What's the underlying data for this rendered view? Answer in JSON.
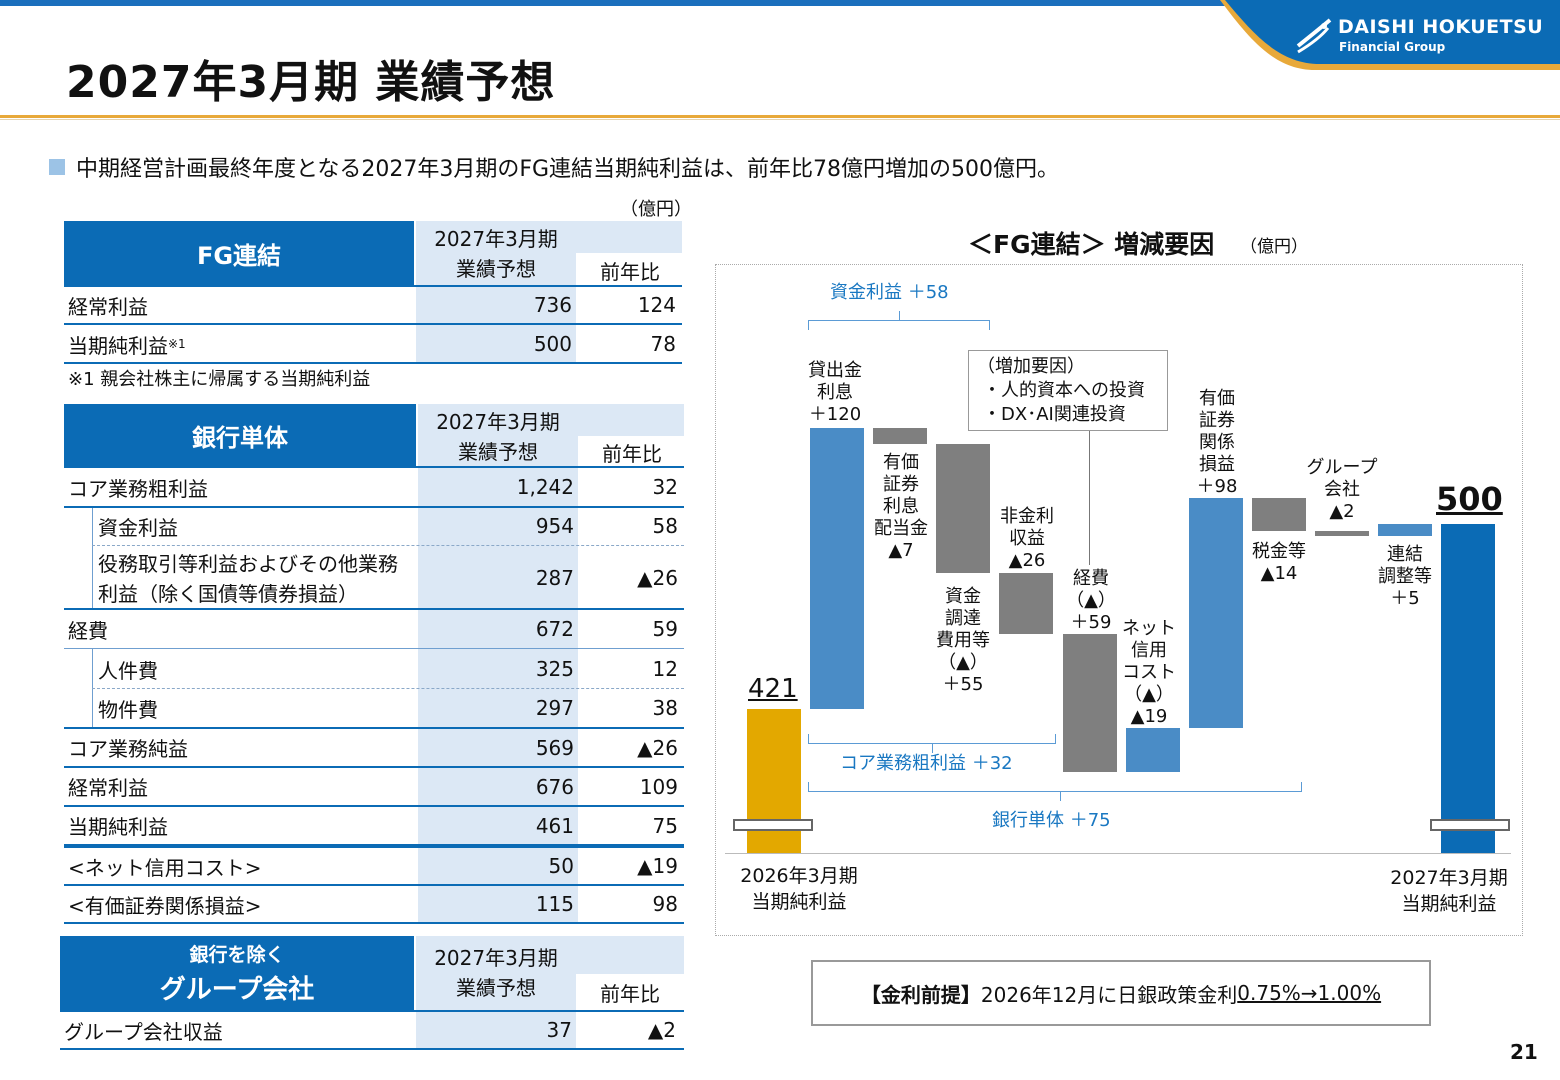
{
  "header": {
    "title": "2027年3月期 業績予想",
    "logo_line1": "DAISHI HOKUETSU",
    "logo_line2": "Financial Group"
  },
  "summary": "中期経営計画最終年度となる2027年3月期のFG連結当期純利益は、前年比78億円増加の500億円。",
  "unit": "（億円）",
  "fg_table": {
    "title": "FG連結",
    "col1_line1": "2027年3月期",
    "col1_line2": "業績予想",
    "col2": "前年比",
    "rows": [
      {
        "label": "経常利益",
        "value": "736",
        "diff": "124"
      },
      {
        "label": "当期純利益",
        "sup": "※1",
        "value": "500",
        "diff": "78"
      }
    ],
    "footnote": "※1 親会社株主に帰属する当期純利益"
  },
  "bank_table": {
    "title": "銀行単体",
    "col1_line1": "2027年3月期",
    "col1_line2": "業績予想",
    "col2": "前年比",
    "rows": [
      {
        "label": "コア業務粗利益",
        "value": "1,242",
        "diff": "32"
      },
      {
        "label": "資金利益",
        "value": "954",
        "diff": "58"
      },
      {
        "label_line1": "役務取引等利益およびその他業務",
        "label_line2": "利益（除く国債等債券損益）",
        "value": "287",
        "diff": "▲26"
      },
      {
        "label": "経費",
        "value": "672",
        "diff": "59"
      },
      {
        "label": "人件費",
        "value": "325",
        "diff": "12"
      },
      {
        "label": "物件費",
        "value": "297",
        "diff": "38"
      },
      {
        "label": "コア業務純益",
        "value": "569",
        "diff": "▲26"
      },
      {
        "label": "経常利益",
        "value": "676",
        "diff": "109"
      },
      {
        "label": "当期純利益",
        "value": "461",
        "diff": "75"
      },
      {
        "label": "<ネット信用コスト>",
        "value": "50",
        "diff": "▲19"
      },
      {
        "label": "<有価証券関係損益>",
        "value": "115",
        "diff": "98"
      }
    ]
  },
  "group_table": {
    "title_line1": "銀行を除く",
    "title_line2": "グループ会社",
    "col1_line1": "2027年3月期",
    "col1_line2": "業績予想",
    "col2": "前年比",
    "rows": [
      {
        "label": "グループ会社収益",
        "value": "37",
        "diff": "▲2"
      }
    ]
  },
  "chart_title": "＜FG連結＞ 増減要因",
  "chart_unit": "（億円）",
  "chart_labels": {
    "bracket_top": "資金利益 ＋58",
    "bracket_core": "コア業務粗利益 ＋32",
    "bracket_bank": "銀行単体 ＋75",
    "box_l1": "（増加要因）",
    "box_l2": "・人的資本への投資",
    "box_l3": "・DX･AI関連投資",
    "start_value": "421",
    "end_value": "500",
    "start_l1": "2026年3月期",
    "start_l2": "当期純利益",
    "end_l1": "2027年3月期",
    "end_l2": "当期純利益",
    "s1": [
      "貸出金",
      "利息",
      "＋120"
    ],
    "s2": [
      "有価",
      "証券",
      "利息",
      "配当金",
      "▲7"
    ],
    "s3": [
      "資金",
      "調達",
      "費用等",
      "（▲）",
      "＋55"
    ],
    "s4": [
      "非金利",
      "収益",
      "▲26"
    ],
    "s5": [
      "経費",
      "（▲）",
      "＋59"
    ],
    "s6": [
      "ネット",
      "信用",
      "コスト",
      "（▲）",
      "▲19"
    ],
    "s7": [
      "有価",
      "証券",
      "関係",
      "損益",
      "＋98"
    ],
    "s8": [
      "税金等",
      "▲14"
    ],
    "s9": [
      "グループ",
      "会社",
      "▲2"
    ],
    "s10": [
      "連結",
      "調整等",
      "＋5"
    ]
  },
  "chart_data": {
    "type": "bar",
    "categories": [
      "2026年3月期 当期純利益",
      "貸出金利息",
      "有価証券利息配当金",
      "資金調達費用等",
      "非金利収益",
      "経費",
      "ネット信用コスト",
      "有価証券関係損益",
      "税金等",
      "グループ会社",
      "連結調整等",
      "2027年3月期 当期純利益"
    ],
    "values": [
      421,
      120,
      -7,
      -55,
      -26,
      -59,
      19,
      98,
      -14,
      -2,
      5,
      500
    ],
    "colors": {
      "start": "#e3a800",
      "increase": "#4a8cc6",
      "decrease": "#7f7f7f",
      "end": "#0b6bb5"
    }
  },
  "premise": {
    "label": "【金利前提】",
    "text": "2026年12月に日銀政策金利",
    "rate": "0.75%→1.00%"
  },
  "page_number": "21"
}
